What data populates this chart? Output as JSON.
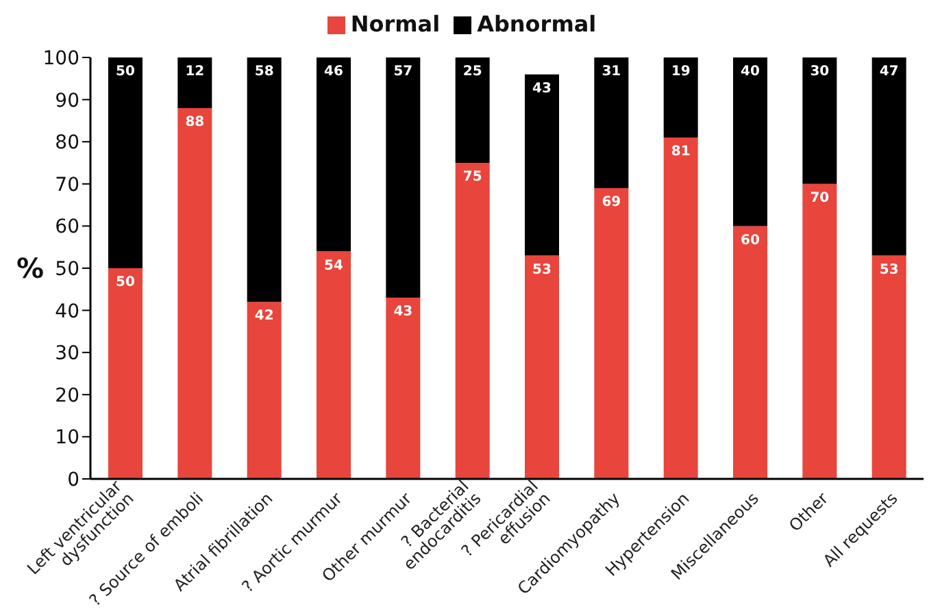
{
  "chart_data": {
    "type": "bar",
    "stacked": true,
    "ylabel": "%",
    "categories": [
      "Left ventricular\ndysfunction",
      "? Source of emboli",
      "Atrial fibrillation",
      "? Aortic murmur",
      "Other murmur",
      "? Bacterial\nendocarditis",
      "? Pericardial\neffusion",
      "Cardiomyopathy",
      "Hypertension",
      "Miscellaneous",
      "Other",
      "All requests"
    ],
    "series": [
      {
        "name": "Normal",
        "color": "#e8453c",
        "values": [
          50,
          88,
          42,
          54,
          43,
          75,
          53,
          69,
          81,
          60,
          70,
          53
        ]
      },
      {
        "name": "Abnormal",
        "color": "#000000",
        "values": [
          50,
          12,
          58,
          46,
          57,
          25,
          43,
          31,
          19,
          40,
          30,
          47
        ]
      }
    ],
    "ylim": [
      0,
      100
    ],
    "yticks": [
      0,
      10,
      20,
      30,
      40,
      50,
      60,
      70,
      80,
      90,
      100
    ],
    "data_labels": true,
    "legend": "top",
    "grid": false
  }
}
